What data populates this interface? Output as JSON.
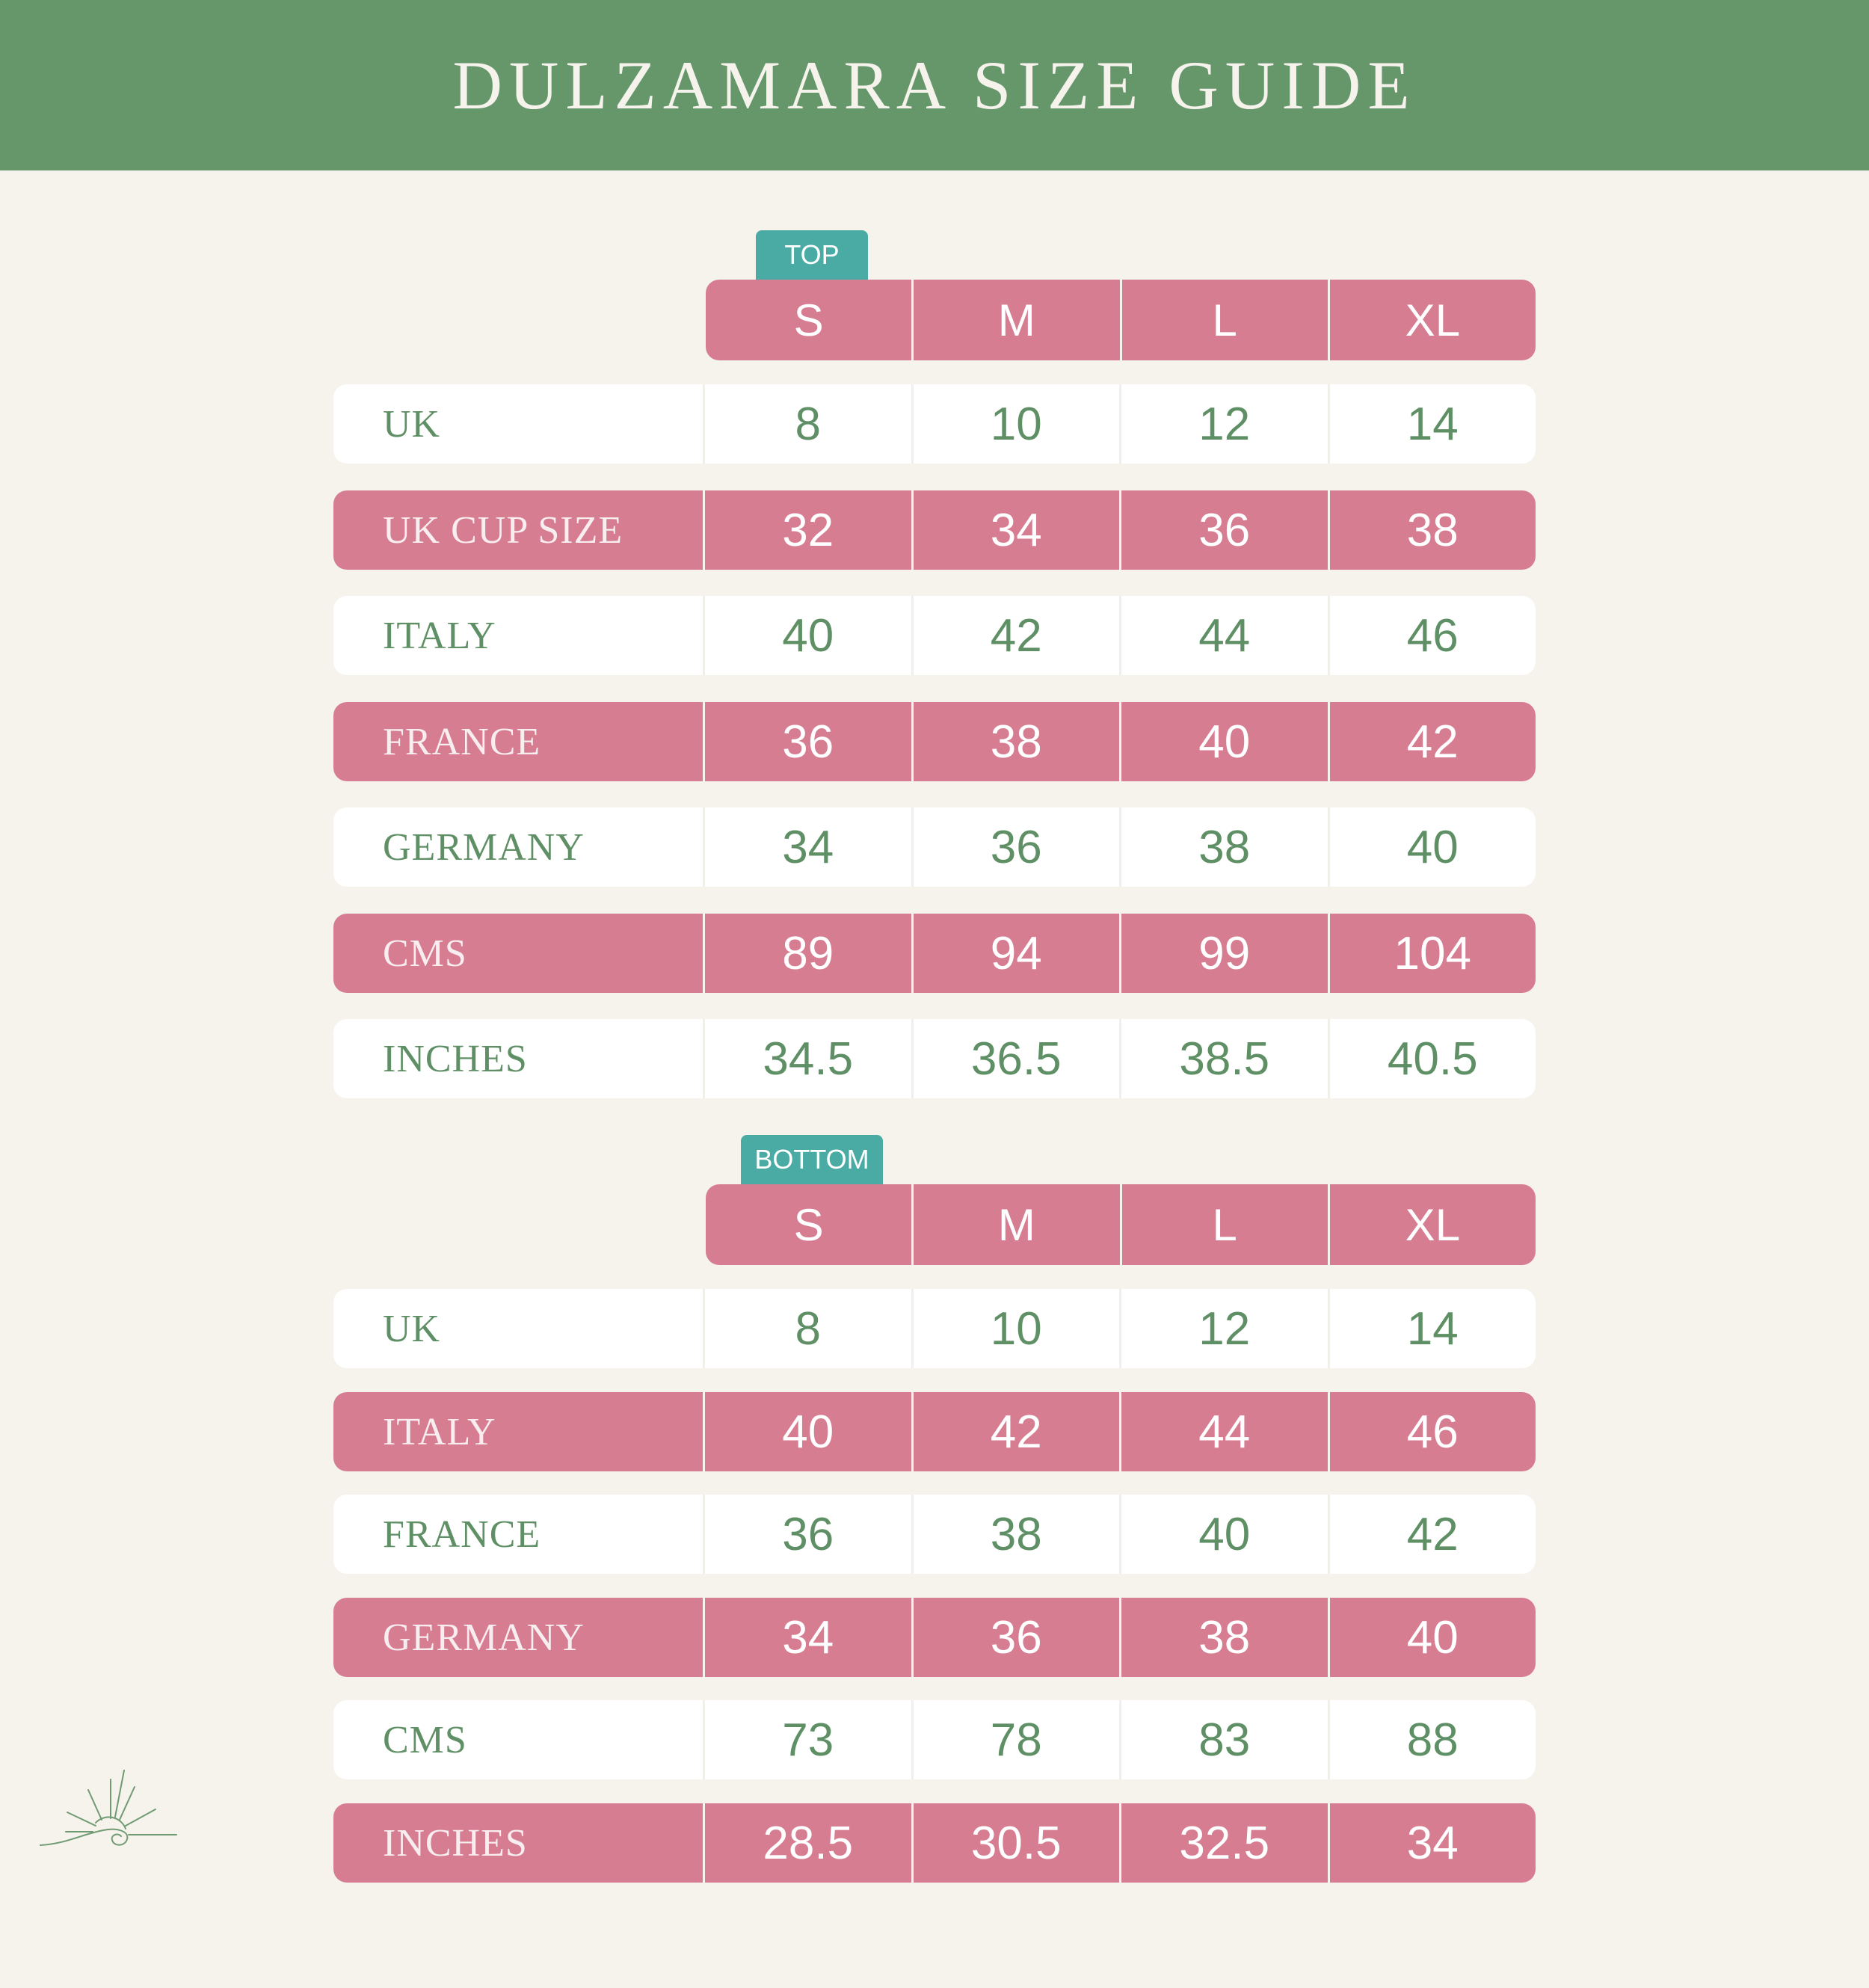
{
  "title": "DULZAMARA SIZE GUIDE",
  "sizes": [
    "S",
    "M",
    "L",
    "XL"
  ],
  "top": {
    "tag": "TOP",
    "rows": [
      {
        "label": "UK",
        "values": [
          "8",
          "10",
          "12",
          "14"
        ]
      },
      {
        "label": "UK CUP SIZE",
        "values": [
          "32",
          "34",
          "36",
          "38"
        ]
      },
      {
        "label": "ITALY",
        "values": [
          "40",
          "42",
          "44",
          "46"
        ]
      },
      {
        "label": "FRANCE",
        "values": [
          "36",
          "38",
          "40",
          "42"
        ]
      },
      {
        "label": "GERMANY",
        "values": [
          "34",
          "36",
          "38",
          "40"
        ]
      },
      {
        "label": "CMS",
        "values": [
          "89",
          "94",
          "99",
          "104"
        ]
      },
      {
        "label": "INCHES",
        "values": [
          "34.5",
          "36.5",
          "38.5",
          "40.5"
        ]
      }
    ]
  },
  "bottom": {
    "tag": "BOTTOM",
    "rows": [
      {
        "label": "UK",
        "values": [
          "8",
          "10",
          "12",
          "14"
        ]
      },
      {
        "label": "ITALY",
        "values": [
          "40",
          "42",
          "44",
          "46"
        ]
      },
      {
        "label": "FRANCE",
        "values": [
          "36",
          "38",
          "40",
          "42"
        ]
      },
      {
        "label": "GERMANY",
        "values": [
          "34",
          "36",
          "38",
          "40"
        ]
      },
      {
        "label": "CMS",
        "values": [
          "73",
          "78",
          "83",
          "88"
        ]
      },
      {
        "label": "INCHES",
        "values": [
          "28.5",
          "30.5",
          "32.5",
          "34"
        ]
      }
    ]
  },
  "logo_icon": "sun-wave-icon",
  "colors": {
    "banner": "#65976b",
    "background": "#f6f3ed",
    "pink": "#d77d92",
    "teal": "#4aaba5",
    "green_text": "#5f8f65"
  }
}
